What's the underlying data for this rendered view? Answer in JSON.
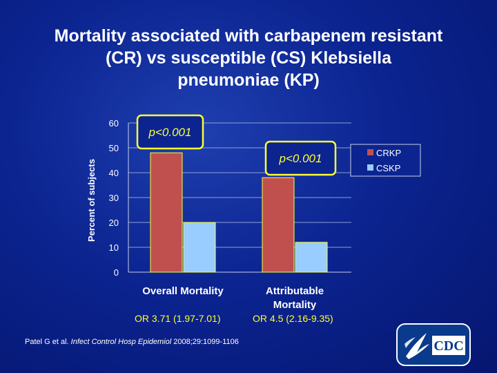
{
  "slide": {
    "title_lines": [
      "Mortality associated with carbapenem resistant",
      "(CR) vs susceptible (CS) Klebsiella",
      "pneumoniae (KP)"
    ],
    "or_labels": [
      "OR 3.71 (1.97-7.01)",
      "OR 4.5 (2.16-9.35)"
    ],
    "citation": {
      "authors": "Patel G et al. ",
      "journal": "Infect Control Hosp Epidemiol",
      "details": " 2008;29:1099-1106"
    },
    "logo": {
      "text": "CDC",
      "icon": "hhs-eagle-icon"
    },
    "colors": {
      "crkp": "#c0504d",
      "cskp": "#99ccff",
      "annotation": "#ffff33",
      "background": "#0b2490"
    }
  },
  "chart_data": {
    "type": "bar",
    "categories": [
      "Overall Mortality",
      "Attributable Mortality"
    ],
    "category_label_lines": [
      [
        "Overall Mortality"
      ],
      [
        "Attributable",
        "Mortality"
      ]
    ],
    "series": [
      {
        "name": "CRKP",
        "values": [
          48,
          38
        ]
      },
      {
        "name": "CSKP",
        "values": [
          20,
          12
        ]
      }
    ],
    "ylabel": "Percent of subjects",
    "xlabel": "",
    "ylim": [
      0,
      60
    ],
    "yticks": [
      0,
      10,
      20,
      30,
      40,
      50,
      60
    ],
    "grid": true,
    "legend": "right",
    "annotations": [
      "p<0.001",
      "p<0.001"
    ]
  }
}
